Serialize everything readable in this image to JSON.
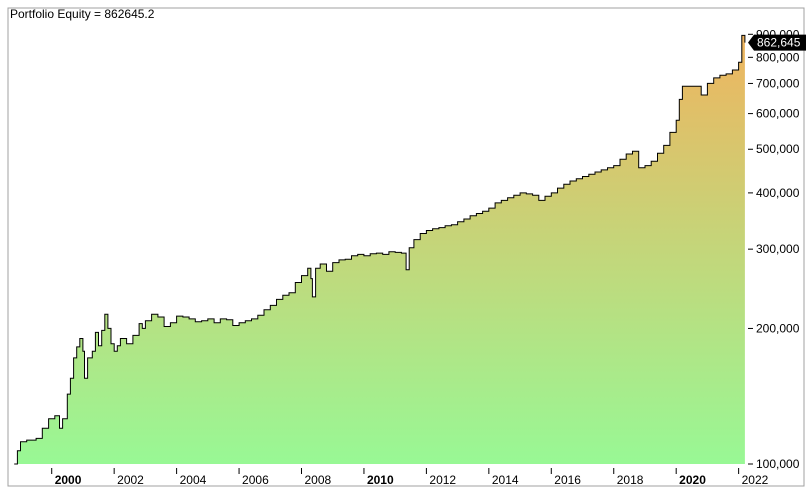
{
  "chart_data": {
    "type": "area",
    "title": "Portfolio Equity = 862645.2",
    "last_value_label": "862,645",
    "y_scale": "log",
    "ylim": [
      100000,
      920000
    ],
    "xlim": [
      1998.6,
      2022.3
    ],
    "y_ticks": [
      {
        "value": 100000,
        "label": "100,000"
      },
      {
        "value": 200000,
        "label": "200,000"
      },
      {
        "value": 300000,
        "label": "300,000"
      },
      {
        "value": 400000,
        "label": "400,000"
      },
      {
        "value": 500000,
        "label": "500,000"
      },
      {
        "value": 600000,
        "label": "600,000"
      },
      {
        "value": 700000,
        "label": "700,000"
      },
      {
        "value": 800000,
        "label": "800,000"
      },
      {
        "value": 900000,
        "label": "900,000"
      }
    ],
    "x_ticks": [
      {
        "value": 2000,
        "label": "2000",
        "bold": true
      },
      {
        "value": 2002,
        "label": "2002",
        "bold": false
      },
      {
        "value": 2004,
        "label": "2004",
        "bold": false
      },
      {
        "value": 2006,
        "label": "2006",
        "bold": false
      },
      {
        "value": 2008,
        "label": "2008",
        "bold": false
      },
      {
        "value": 2010,
        "label": "2010",
        "bold": true
      },
      {
        "value": 2012,
        "label": "2012",
        "bold": false
      },
      {
        "value": 2014,
        "label": "2014",
        "bold": false
      },
      {
        "value": 2016,
        "label": "2016",
        "bold": false
      },
      {
        "value": 2018,
        "label": "2018",
        "bold": false
      },
      {
        "value": 2020,
        "label": "2020",
        "bold": true
      },
      {
        "value": 2022,
        "label": "2022",
        "bold": false
      }
    ],
    "colors": {
      "fill_top": "#efb45f",
      "fill_bottom": "#98f895",
      "line": "#000000",
      "label_bg": "#000000",
      "label_text": "#ffffff",
      "frame": "#a0a0a0"
    },
    "series": [
      {
        "points": [
          [
            1998.8,
            100000
          ],
          [
            1998.9,
            107000
          ],
          [
            1999.0,
            112000
          ],
          [
            1999.2,
            113000
          ],
          [
            1999.5,
            114000
          ],
          [
            1999.7,
            120000
          ],
          [
            1999.9,
            126000
          ],
          [
            2000.1,
            128000
          ],
          [
            2000.25,
            120000
          ],
          [
            2000.35,
            126000
          ],
          [
            2000.5,
            143000
          ],
          [
            2000.6,
            155000
          ],
          [
            2000.7,
            172000
          ],
          [
            2000.8,
            182000
          ],
          [
            2000.9,
            190000
          ],
          [
            2001.0,
            178000
          ],
          [
            2001.05,
            155000
          ],
          [
            2001.15,
            172000
          ],
          [
            2001.3,
            178000
          ],
          [
            2001.4,
            196000
          ],
          [
            2001.5,
            183000
          ],
          [
            2001.6,
            198000
          ],
          [
            2001.7,
            215000
          ],
          [
            2001.8,
            200000
          ],
          [
            2001.9,
            185000
          ],
          [
            2002.0,
            178000
          ],
          [
            2002.1,
            183000
          ],
          [
            2002.2,
            190000
          ],
          [
            2002.4,
            185000
          ],
          [
            2002.6,
            193000
          ],
          [
            2002.8,
            205000
          ],
          [
            2002.9,
            200000
          ],
          [
            2003.0,
            208000
          ],
          [
            2003.2,
            215000
          ],
          [
            2003.4,
            212000
          ],
          [
            2003.6,
            202000
          ],
          [
            2003.8,
            206000
          ],
          [
            2004.0,
            213000
          ],
          [
            2004.2,
            212000
          ],
          [
            2004.4,
            210000
          ],
          [
            2004.6,
            207000
          ],
          [
            2004.8,
            208000
          ],
          [
            2005.0,
            210000
          ],
          [
            2005.2,
            206000
          ],
          [
            2005.4,
            210000
          ],
          [
            2005.6,
            209000
          ],
          [
            2005.8,
            203000
          ],
          [
            2006.0,
            206000
          ],
          [
            2006.2,
            208000
          ],
          [
            2006.4,
            210000
          ],
          [
            2006.6,
            214000
          ],
          [
            2006.8,
            220000
          ],
          [
            2007.0,
            225000
          ],
          [
            2007.2,
            232000
          ],
          [
            2007.4,
            237000
          ],
          [
            2007.6,
            240000
          ],
          [
            2007.8,
            253000
          ],
          [
            2008.0,
            262000
          ],
          [
            2008.2,
            272000
          ],
          [
            2008.3,
            258000
          ],
          [
            2008.35,
            235000
          ],
          [
            2008.45,
            272000
          ],
          [
            2008.6,
            278000
          ],
          [
            2008.8,
            268000
          ],
          [
            2009.0,
            280000
          ],
          [
            2009.2,
            284000
          ],
          [
            2009.4,
            285000
          ],
          [
            2009.6,
            290000
          ],
          [
            2009.8,
            292000
          ],
          [
            2010.0,
            290000
          ],
          [
            2010.2,
            293000
          ],
          [
            2010.4,
            294000
          ],
          [
            2010.6,
            292000
          ],
          [
            2010.8,
            296000
          ],
          [
            2011.0,
            295000
          ],
          [
            2011.2,
            294000
          ],
          [
            2011.35,
            270000
          ],
          [
            2011.45,
            302000
          ],
          [
            2011.6,
            315000
          ],
          [
            2011.8,
            325000
          ],
          [
            2012.0,
            330000
          ],
          [
            2012.2,
            333000
          ],
          [
            2012.4,
            335000
          ],
          [
            2012.6,
            338000
          ],
          [
            2012.8,
            340000
          ],
          [
            2013.0,
            345000
          ],
          [
            2013.2,
            350000
          ],
          [
            2013.4,
            356000
          ],
          [
            2013.6,
            360000
          ],
          [
            2013.8,
            364000
          ],
          [
            2014.0,
            370000
          ],
          [
            2014.2,
            380000
          ],
          [
            2014.4,
            385000
          ],
          [
            2014.6,
            390000
          ],
          [
            2014.8,
            395000
          ],
          [
            2015.0,
            400000
          ],
          [
            2015.2,
            398000
          ],
          [
            2015.4,
            395000
          ],
          [
            2015.6,
            385000
          ],
          [
            2015.8,
            393000
          ],
          [
            2016.0,
            400000
          ],
          [
            2016.2,
            410000
          ],
          [
            2016.4,
            418000
          ],
          [
            2016.6,
            425000
          ],
          [
            2016.8,
            430000
          ],
          [
            2017.0,
            435000
          ],
          [
            2017.2,
            440000
          ],
          [
            2017.4,
            445000
          ],
          [
            2017.6,
            450000
          ],
          [
            2017.8,
            455000
          ],
          [
            2018.0,
            460000
          ],
          [
            2018.2,
            475000
          ],
          [
            2018.4,
            488000
          ],
          [
            2018.6,
            495000
          ],
          [
            2018.8,
            455000
          ],
          [
            2019.0,
            460000
          ],
          [
            2019.2,
            470000
          ],
          [
            2019.4,
            490000
          ],
          [
            2019.6,
            510000
          ],
          [
            2019.8,
            545000
          ],
          [
            2020.0,
            580000
          ],
          [
            2020.1,
            645000
          ],
          [
            2020.2,
            690000
          ],
          [
            2020.4,
            690000
          ],
          [
            2020.6,
            690000
          ],
          [
            2020.8,
            660000
          ],
          [
            2021.0,
            700000
          ],
          [
            2021.2,
            720000
          ],
          [
            2021.4,
            730000
          ],
          [
            2021.6,
            735000
          ],
          [
            2021.8,
            750000
          ],
          [
            2022.0,
            780000
          ],
          [
            2022.1,
            895000
          ],
          [
            2022.2,
            862645
          ]
        ]
      }
    ]
  }
}
